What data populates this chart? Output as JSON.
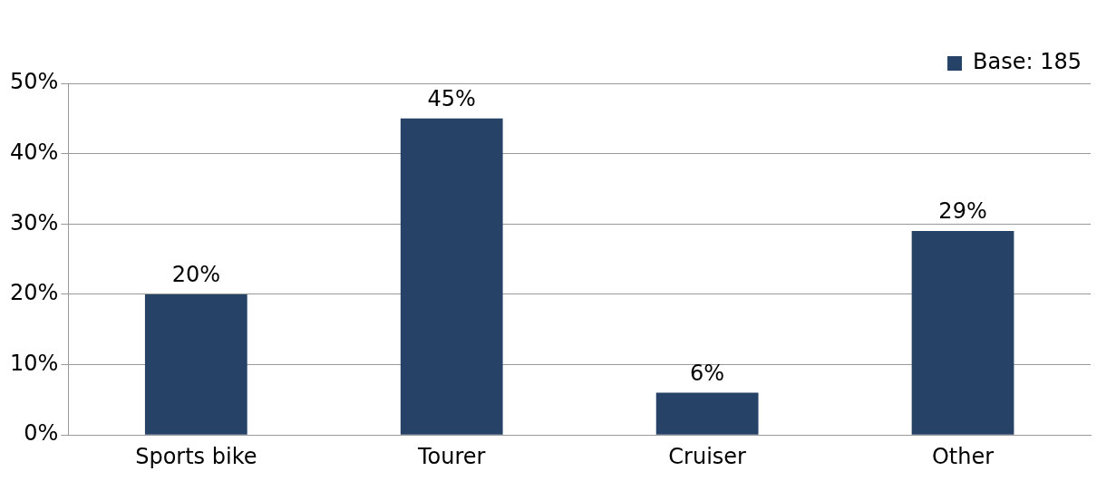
{
  "chart_data": {
    "type": "bar",
    "categories": [
      "Sports bike",
      "Tourer",
      "Cruiser",
      "Other"
    ],
    "series": [
      {
        "name": "Base: 185",
        "color": "#264266",
        "values": [
          20,
          45,
          6,
          29
        ],
        "value_labels": [
          "20%",
          "45%",
          "6%",
          "29%"
        ]
      }
    ],
    "ylim": [
      0,
      50
    ],
    "yticks": [
      {
        "value": 0,
        "label": "0%"
      },
      {
        "value": 10,
        "label": "10%"
      },
      {
        "value": 20,
        "label": "20%"
      },
      {
        "value": 30,
        "label": "30%"
      },
      {
        "value": 40,
        "label": "40%"
      },
      {
        "value": 50,
        "label": "50%"
      }
    ],
    "grid": "y",
    "legend": "top right"
  }
}
